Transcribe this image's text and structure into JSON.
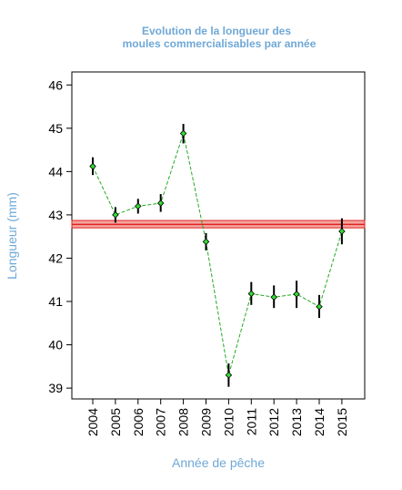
{
  "chart_data": {
    "type": "line",
    "title_line1": "Evolution de la longueur des",
    "title_line2": "moules commercialisables par année",
    "xlabel": "Année de pêche",
    "ylabel": "Longueur (mm)",
    "categories": [
      "2004",
      "2005",
      "2006",
      "2007",
      "2008",
      "2009",
      "2010",
      "2011",
      "2012",
      "2013",
      "2014",
      "2015"
    ],
    "series": [
      {
        "values": [
          44.12,
          43.0,
          43.2,
          43.27,
          44.88,
          42.38,
          39.3,
          41.18,
          41.1,
          41.17,
          40.88,
          42.62
        ],
        "lower": [
          43.92,
          42.82,
          43.03,
          43.07,
          44.65,
          42.18,
          39.03,
          40.92,
          40.85,
          40.85,
          40.62,
          42.32
        ],
        "upper": [
          44.33,
          43.18,
          43.37,
          43.48,
          45.1,
          42.58,
          39.57,
          41.45,
          41.37,
          41.48,
          41.15,
          42.92
        ]
      }
    ],
    "reference_line": {
      "value": 42.78,
      "band": [
        42.7,
        42.87
      ]
    },
    "ylim": [
      38.75,
      46.3
    ],
    "yticks": [
      39,
      40,
      41,
      42,
      43,
      44,
      45,
      46
    ],
    "colors": {
      "line": "#22aa22",
      "marker_fill": "#33dd33",
      "error_bar": "#000000",
      "reference": "#e02020",
      "reference_band": "#f4a6a0",
      "title": "#6fa8d6"
    },
    "grid": false,
    "legend": "none"
  }
}
